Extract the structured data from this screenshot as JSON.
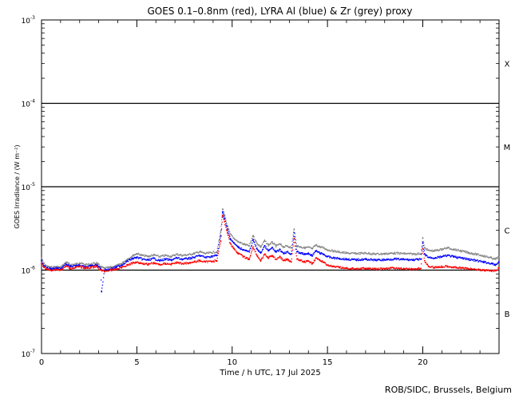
{
  "chart_data": {
    "type": "scatter",
    "title": "GOES 0.1–0.8nm (red), LYRA Al (blue) & Zr (grey) proxy",
    "xlabel": "Time / h UTC, 17 Jul 2025",
    "ylabel": "GOES Irradiance / (W m⁻²)",
    "ylog": true,
    "xlim": [
      0,
      24
    ],
    "ylim": [
      1e-07,
      0.001
    ],
    "x_ticks": [
      0,
      5,
      10,
      15,
      20
    ],
    "x_tick_labels": [
      "0",
      "5",
      "10",
      "15",
      "20"
    ],
    "y_ticks": [
      1e-07,
      1e-06,
      1e-05,
      0.0001,
      0.001
    ],
    "y_tick_labels": [
      {
        "base": "10",
        "exp": "-7"
      },
      {
        "base": "10",
        "exp": "-6"
      },
      {
        "base": "10",
        "exp": "-5"
      },
      {
        "base": "10",
        "exp": "-4"
      },
      {
        "base": "10",
        "exp": "-3"
      }
    ],
    "flare_class_labels": [
      {
        "label": "B",
        "value": 3e-07
      },
      {
        "label": "C",
        "value": 3e-06
      },
      {
        "label": "M",
        "value": 3e-05
      },
      {
        "label": "X",
        "value": 0.0003
      }
    ],
    "threshold_lines": [
      1e-06,
      1e-05,
      0.0001
    ],
    "series": [
      {
        "name": "GOES 0.1–0.8nm",
        "color": "#ff0000",
        "x": [
          0,
          0.1,
          0.3,
          0.5,
          0.8,
          1.0,
          1.3,
          1.5,
          1.8,
          2.0,
          2.3,
          2.6,
          2.9,
          3.1,
          3.3,
          3.6,
          3.9,
          4.2,
          4.5,
          4.8,
          5.0,
          5.3,
          5.6,
          5.9,
          6.2,
          6.5,
          6.8,
          7.1,
          7.4,
          7.7,
          8.0,
          8.3,
          8.6,
          8.9,
          9.2,
          9.4,
          9.5,
          9.6,
          9.75,
          9.9,
          10.1,
          10.3,
          10.6,
          10.9,
          11.1,
          11.3,
          11.5,
          11.7,
          11.9,
          12.1,
          12.3,
          12.5,
          12.7,
          12.9,
          13.1,
          13.25,
          13.4,
          13.6,
          13.8,
          14.0,
          14.2,
          14.4,
          14.6,
          14.8,
          15.0,
          15.3,
          15.6,
          16.0,
          16.5,
          17.0,
          17.5,
          18.0,
          18.5,
          19.0,
          19.5,
          19.9,
          20.0,
          20.1,
          20.3,
          20.6,
          21.0,
          21.3,
          21.6,
          22.0,
          22.4,
          22.8,
          23.2,
          23.6,
          23.8,
          24.0
        ],
        "y": [
          1.2e-06,
          1.1e-06,
          1.02e-06,
          1e-06,
          1.02e-06,
          1e-06,
          1.12e-06,
          1.05e-06,
          1.08e-06,
          1.1e-06,
          1.06e-06,
          1.08e-06,
          1.1e-06,
          1e-06,
          9.7e-07,
          1e-06,
          1.02e-06,
          1.08e-06,
          1.15e-06,
          1.22e-06,
          1.25e-06,
          1.2e-06,
          1.18e-06,
          1.22e-06,
          1.16e-06,
          1.2e-06,
          1.18e-06,
          1.23e-06,
          1.2e-06,
          1.22e-06,
          1.25e-06,
          1.3e-06,
          1.25e-06,
          1.28e-06,
          1.3e-06,
          2.2e-06,
          4.5e-06,
          3.8e-06,
          2.8e-06,
          2.1e-06,
          1.8e-06,
          1.6e-06,
          1.45e-06,
          1.35e-06,
          1.9e-06,
          1.5e-06,
          1.3e-06,
          1.55e-06,
          1.4e-06,
          1.5e-06,
          1.35e-06,
          1.45e-06,
          1.3e-06,
          1.35e-06,
          1.25e-06,
          2.4e-06,
          1.35e-06,
          1.3e-06,
          1.25e-06,
          1.28e-06,
          1.2e-06,
          1.4e-06,
          1.3e-06,
          1.25e-06,
          1.15e-06,
          1.1e-06,
          1.08e-06,
          1.05e-06,
          1.04e-06,
          1.05e-06,
          1.03e-06,
          1.04e-06,
          1.06e-06,
          1.04e-06,
          1.03e-06,
          1.05e-06,
          1.8e-06,
          1.3e-06,
          1.1e-06,
          1.08e-06,
          1.1e-06,
          1.12e-06,
          1.08e-06,
          1.06e-06,
          1.04e-06,
          1.02e-06,
          1e-06,
          9.8e-07,
          9.8e-07,
          1.05e-06
        ]
      },
      {
        "name": "LYRA Al",
        "color": "#0000ff",
        "x": [
          0,
          0.1,
          0.3,
          0.5,
          0.8,
          1.0,
          1.3,
          1.5,
          1.8,
          2.0,
          2.3,
          2.6,
          2.9,
          3.1,
          3.15,
          3.3,
          3.6,
          3.9,
          4.2,
          4.5,
          4.8,
          5.0,
          5.3,
          5.6,
          5.9,
          6.2,
          6.5,
          6.8,
          7.1,
          7.4,
          7.7,
          8.0,
          8.3,
          8.6,
          8.9,
          9.2,
          9.4,
          9.5,
          9.6,
          9.75,
          9.9,
          10.1,
          10.3,
          10.6,
          10.9,
          11.1,
          11.3,
          11.5,
          11.7,
          11.9,
          12.1,
          12.3,
          12.5,
          12.7,
          12.9,
          13.1,
          13.25,
          13.4,
          13.6,
          13.8,
          14.0,
          14.2,
          14.4,
          14.6,
          14.8,
          15.0,
          15.3,
          15.6,
          16.0,
          16.5,
          17.0,
          17.5,
          18.0,
          18.5,
          19.0,
          19.5,
          19.9,
          20.0,
          20.1,
          20.3,
          20.6,
          21.0,
          21.3,
          21.6,
          22.0,
          22.4,
          22.8,
          23.2,
          23.6,
          23.8,
          24.0
        ],
        "y": [
          1.3e-06,
          1.15e-06,
          1.06e-06,
          1.04e-06,
          1.06e-06,
          1.04e-06,
          1.18e-06,
          1.1e-06,
          1.12e-06,
          1.15e-06,
          1.1e-06,
          1.12e-06,
          1.15e-06,
          1.05e-06,
          5.5e-07,
          1e-06,
          1.03e-06,
          1.08e-06,
          1.15e-06,
          1.28e-06,
          1.38e-06,
          1.42e-06,
          1.35e-06,
          1.32e-06,
          1.38e-06,
          1.3e-06,
          1.35e-06,
          1.32e-06,
          1.4e-06,
          1.35e-06,
          1.38e-06,
          1.42e-06,
          1.5e-06,
          1.42e-06,
          1.46e-06,
          1.5e-06,
          2.6e-06,
          5e-06,
          4.2e-06,
          3.1e-06,
          2.4e-06,
          2.1e-06,
          1.9e-06,
          1.75e-06,
          1.65e-06,
          2.3e-06,
          1.8e-06,
          1.6e-06,
          1.95e-06,
          1.7e-06,
          1.85e-06,
          1.65e-06,
          1.75e-06,
          1.6e-06,
          1.65e-06,
          1.55e-06,
          2.8e-06,
          1.65e-06,
          1.6e-06,
          1.55e-06,
          1.58e-06,
          1.5e-06,
          1.7e-06,
          1.6e-06,
          1.55e-06,
          1.45e-06,
          1.4e-06,
          1.38e-06,
          1.35e-06,
          1.33e-06,
          1.35e-06,
          1.32e-06,
          1.33e-06,
          1.36e-06,
          1.34e-06,
          1.33e-06,
          1.35e-06,
          2.1e-06,
          1.55e-06,
          1.42e-06,
          1.4e-06,
          1.45e-06,
          1.5e-06,
          1.45e-06,
          1.4e-06,
          1.35e-06,
          1.3e-06,
          1.25e-06,
          1.2e-06,
          1.15e-06,
          1.25e-06
        ]
      },
      {
        "name": "LYRA Zr",
        "color": "#888888",
        "x": [
          0,
          0.1,
          0.3,
          0.5,
          0.8,
          1.0,
          1.3,
          1.5,
          1.8,
          2.0,
          2.3,
          2.6,
          2.9,
          3.1,
          3.3,
          3.6,
          3.9,
          4.2,
          4.5,
          4.8,
          5.0,
          5.3,
          5.6,
          5.9,
          6.2,
          6.5,
          6.8,
          7.1,
          7.4,
          7.7,
          8.0,
          8.3,
          8.6,
          8.9,
          9.2,
          9.4,
          9.5,
          9.6,
          9.75,
          9.9,
          10.1,
          10.3,
          10.6,
          10.9,
          11.1,
          11.3,
          11.5,
          11.7,
          11.9,
          12.1,
          12.3,
          12.5,
          12.7,
          12.9,
          13.1,
          13.25,
          13.4,
          13.6,
          13.8,
          14.0,
          14.2,
          14.4,
          14.6,
          14.8,
          15.0,
          15.3,
          15.6,
          16.0,
          16.5,
          17.0,
          17.5,
          18.0,
          18.5,
          19.0,
          19.5,
          19.9,
          20.0,
          20.1,
          20.3,
          20.6,
          21.0,
          21.3,
          21.6,
          22.0,
          22.4,
          22.8,
          23.2,
          23.6,
          23.8,
          24.0
        ],
        "y": [
          1.4e-06,
          1.22e-06,
          1.1e-06,
          1.08e-06,
          1.1e-06,
          1.08e-06,
          1.25e-06,
          1.16e-06,
          1.18e-06,
          1.22e-06,
          1.16e-06,
          1.18e-06,
          1.22e-06,
          1.1e-06,
          1.05e-06,
          1.08e-06,
          1.12e-06,
          1.2e-06,
          1.35e-06,
          1.5e-06,
          1.58e-06,
          1.5e-06,
          1.46e-06,
          1.52e-06,
          1.45e-06,
          1.5e-06,
          1.46e-06,
          1.55e-06,
          1.5e-06,
          1.53e-06,
          1.58e-06,
          1.66e-06,
          1.58e-06,
          1.62e-06,
          1.66e-06,
          2.9e-06,
          5.4e-06,
          4.6e-06,
          3.4e-06,
          2.7e-06,
          2.4e-06,
          2.2e-06,
          2.05e-06,
          1.95e-06,
          2.6e-06,
          2.1e-06,
          1.9e-06,
          2.25e-06,
          2e-06,
          2.15e-06,
          1.95e-06,
          2.05e-06,
          1.9e-06,
          1.95e-06,
          1.85e-06,
          3.1e-06,
          1.95e-06,
          1.9e-06,
          1.85e-06,
          1.88e-06,
          1.8e-06,
          2e-06,
          1.9e-06,
          1.85e-06,
          1.75e-06,
          1.7e-06,
          1.65e-06,
          1.6e-06,
          1.58e-06,
          1.6e-06,
          1.56e-06,
          1.57e-06,
          1.6e-06,
          1.58e-06,
          1.56e-06,
          1.58e-06,
          2.4e-06,
          1.85e-06,
          1.72e-06,
          1.7e-06,
          1.78e-06,
          1.85e-06,
          1.78e-06,
          1.7e-06,
          1.62e-06,
          1.55e-06,
          1.48e-06,
          1.4e-06,
          1.35e-06,
          1.45e-06
        ]
      }
    ]
  },
  "footer": {
    "credit": "ROB/SIDC, Brussels, Belgium"
  }
}
